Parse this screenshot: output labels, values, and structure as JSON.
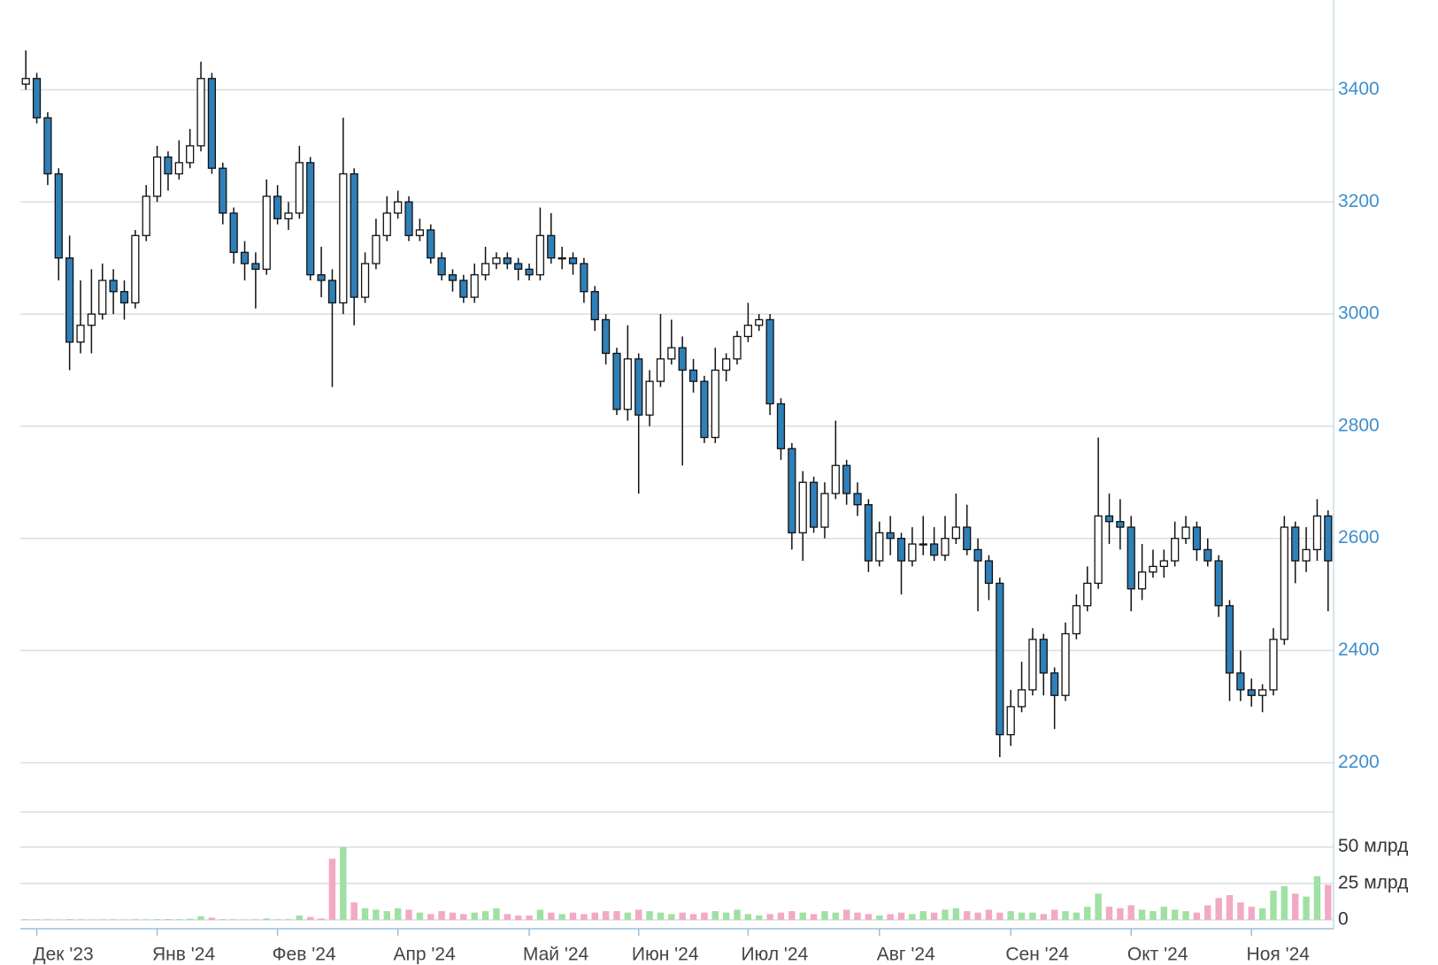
{
  "chart_data": {
    "type": "candlestick",
    "categories": [
      null,
      "Дек '23",
      null,
      null,
      null,
      null,
      null,
      null,
      null,
      null,
      null,
      null,
      "Янв '24",
      null,
      null,
      null,
      null,
      null,
      null,
      null,
      null,
      null,
      null,
      "Фев '24",
      null,
      null,
      null,
      null,
      null,
      null,
      null,
      null,
      null,
      null,
      "Апр '24",
      null,
      null,
      null,
      null,
      null,
      null,
      null,
      null,
      null,
      null,
      null,
      "Май '24",
      null,
      null,
      null,
      null,
      null,
      null,
      null,
      null,
      null,
      "Июн '24",
      null,
      null,
      null,
      null,
      null,
      null,
      null,
      null,
      null,
      "Июл '24",
      null,
      null,
      null,
      null,
      null,
      null,
      null,
      null,
      null,
      null,
      null,
      "Авг '24",
      null,
      null,
      null,
      null,
      null,
      null,
      null,
      null,
      null,
      null,
      null,
      "Сен '24",
      null,
      null,
      null,
      null,
      null,
      null,
      null,
      null,
      null,
      null,
      "Окт '24",
      null,
      null,
      null,
      null,
      null,
      null,
      null,
      null,
      null,
      null,
      "Ноя '24",
      null,
      null,
      null,
      null,
      null,
      null,
      null
    ],
    "open": [
      3410,
      3420,
      3350,
      3250,
      3100,
      2950,
      2980,
      3000,
      3060,
      3040,
      3020,
      3140,
      3210,
      3280,
      3250,
      3270,
      3300,
      3420,
      3260,
      3180,
      3110,
      3090,
      3080,
      3210,
      3170,
      3180,
      3270,
      3070,
      3060,
      3020,
      3250,
      3030,
      3090,
      3140,
      3180,
      3200,
      3140,
      3150,
      3100,
      3070,
      3060,
      3030,
      3070,
      3090,
      3100,
      3090,
      3080,
      3070,
      3140,
      3100,
      3100,
      3090,
      3040,
      2990,
      2930,
      2830,
      2920,
      2820,
      2880,
      2920,
      2940,
      2900,
      2880,
      2780,
      2900,
      2920,
      2960,
      2980,
      2990,
      2840,
      2760,
      2610,
      2700,
      2620,
      2680,
      2730,
      2680,
      2660,
      2560,
      2610,
      2600,
      2560,
      2590,
      2590,
      2570,
      2600,
      2620,
      2580,
      2560,
      2520,
      2250,
      2300,
      2330,
      2420,
      2360,
      2320,
      2430,
      2480,
      2520,
      2640,
      2630,
      2620,
      2510,
      2540,
      2550,
      2560,
      2600,
      2620,
      2580,
      2560,
      2480,
      2360,
      2330,
      2320,
      2330,
      2420,
      2620,
      2560,
      2580,
      2640
    ],
    "high": [
      3470,
      3430,
      3360,
      3260,
      3140,
      3060,
      3080,
      3090,
      3080,
      3060,
      3150,
      3230,
      3300,
      3290,
      3310,
      3330,
      3450,
      3430,
      3270,
      3190,
      3130,
      3110,
      3240,
      3230,
      3200,
      3300,
      3280,
      3120,
      3080,
      3350,
      3260,
      3110,
      3170,
      3210,
      3220,
      3210,
      3170,
      3160,
      3110,
      3080,
      3070,
      3090,
      3120,
      3110,
      3110,
      3100,
      3090,
      3190,
      3180,
      3120,
      3110,
      3100,
      3050,
      3000,
      2940,
      2980,
      2930,
      2900,
      3000,
      2990,
      2960,
      2920,
      2890,
      2940,
      2930,
      2970,
      3020,
      3000,
      3000,
      2850,
      2770,
      2720,
      2710,
      2700,
      2810,
      2740,
      2700,
      2670,
      2630,
      2640,
      2610,
      2620,
      2640,
      2620,
      2640,
      2680,
      2660,
      2600,
      2570,
      2530,
      2330,
      2380,
      2440,
      2430,
      2370,
      2450,
      2500,
      2550,
      2780,
      2680,
      2670,
      2640,
      2590,
      2580,
      2580,
      2630,
      2640,
      2630,
      2600,
      2570,
      2490,
      2400,
      2350,
      2340,
      2440,
      2640,
      2630,
      2620,
      2670,
      2650
    ],
    "low": [
      3400,
      3340,
      3230,
      3060,
      2900,
      2930,
      2930,
      2990,
      3000,
      2990,
      3010,
      3130,
      3200,
      3220,
      3240,
      3260,
      3290,
      3250,
      3160,
      3090,
      3060,
      3010,
      3070,
      3160,
      3150,
      3170,
      3060,
      3030,
      2870,
      3000,
      2980,
      3020,
      3080,
      3130,
      3170,
      3130,
      3130,
      3090,
      3060,
      3040,
      3020,
      3020,
      3060,
      3080,
      3080,
      3060,
      3060,
      3060,
      3090,
      3080,
      3070,
      3020,
      2970,
      2910,
      2820,
      2810,
      2680,
      2800,
      2870,
      2910,
      2730,
      2860,
      2770,
      2770,
      2880,
      2910,
      2950,
      2970,
      2820,
      2740,
      2580,
      2560,
      2610,
      2600,
      2670,
      2660,
      2640,
      2540,
      2550,
      2570,
      2500,
      2550,
      2570,
      2560,
      2560,
      2590,
      2570,
      2470,
      2490,
      2210,
      2230,
      2290,
      2320,
      2320,
      2260,
      2310,
      2420,
      2470,
      2510,
      2590,
      2580,
      2470,
      2490,
      2530,
      2530,
      2550,
      2590,
      2560,
      2550,
      2460,
      2310,
      2310,
      2300,
      2290,
      2320,
      2410,
      2520,
      2540,
      2560,
      2470
    ],
    "close": [
      3420,
      3350,
      3250,
      3100,
      2950,
      2980,
      3000,
      3060,
      3040,
      3020,
      3140,
      3210,
      3280,
      3250,
      3270,
      3300,
      3420,
      3260,
      3180,
      3110,
      3090,
      3080,
      3210,
      3170,
      3180,
      3270,
      3070,
      3060,
      3020,
      3250,
      3030,
      3090,
      3140,
      3180,
      3200,
      3140,
      3150,
      3100,
      3070,
      3060,
      3030,
      3070,
      3090,
      3100,
      3090,
      3080,
      3070,
      3140,
      3100,
      3100,
      3090,
      3040,
      2990,
      2930,
      2830,
      2920,
      2820,
      2880,
      2920,
      2940,
      2900,
      2880,
      2780,
      2900,
      2920,
      2960,
      2980,
      2990,
      2840,
      2760,
      2610,
      2700,
      2620,
      2680,
      2730,
      2680,
      2660,
      2560,
      2610,
      2600,
      2560,
      2590,
      2590,
      2570,
      2600,
      2620,
      2580,
      2560,
      2520,
      2250,
      2300,
      2330,
      2420,
      2360,
      2320,
      2430,
      2480,
      2520,
      2640,
      2630,
      2620,
      2510,
      2540,
      2550,
      2560,
      2600,
      2620,
      2580,
      2560,
      2480,
      2360,
      2330,
      2320,
      2330,
      2420,
      2620,
      2560,
      2580,
      2640,
      2560
    ],
    "volume": [
      0.5,
      0.4,
      0.4,
      0.3,
      0.5,
      0.4,
      0.3,
      0.3,
      0.4,
      0.3,
      0.5,
      0.4,
      0.5,
      0.6,
      0.5,
      0.8,
      2.5,
      1.5,
      0.5,
      0.4,
      0.3,
      0.4,
      1,
      0.4,
      0.5,
      3,
      2,
      1,
      42,
      50,
      12,
      8,
      7,
      6,
      8,
      7,
      5,
      4,
      6,
      5,
      4,
      5,
      6,
      8,
      4,
      3,
      3,
      7,
      5,
      4,
      5,
      4,
      5,
      6,
      6,
      5,
      7,
      6,
      5,
      4,
      5,
      4,
      5,
      6,
      5,
      7,
      4,
      3,
      4,
      5,
      6,
      5,
      4,
      6,
      5,
      7,
      5,
      4,
      3,
      4,
      5,
      4,
      6,
      5,
      7,
      8,
      6,
      5,
      7,
      5,
      6,
      5,
      5,
      4,
      7,
      6,
      5,
      9,
      18,
      9,
      8,
      10,
      7,
      6,
      9,
      7,
      6,
      5,
      10,
      15,
      17,
      12,
      9,
      8,
      20,
      23,
      18,
      16,
      30,
      24
    ],
    "ylim": [
      2180,
      3560
    ],
    "yticks": [
      2200,
      2400,
      2600,
      2800,
      3000,
      3200,
      3400
    ],
    "volume_ylim": [
      0,
      74
    ],
    "volume_ticks": [
      0,
      {
        "value": 25,
        "label": "25 млрд"
      },
      {
        "value": 50,
        "label": "50 млрд"
      }
    ],
    "up_color": "#ffffff",
    "down_color": "#2f7fb8",
    "wick_color": "#111111",
    "volume_up_color": "#9fe0a3",
    "volume_down_color": "#f2a9c4",
    "grid": true
  }
}
